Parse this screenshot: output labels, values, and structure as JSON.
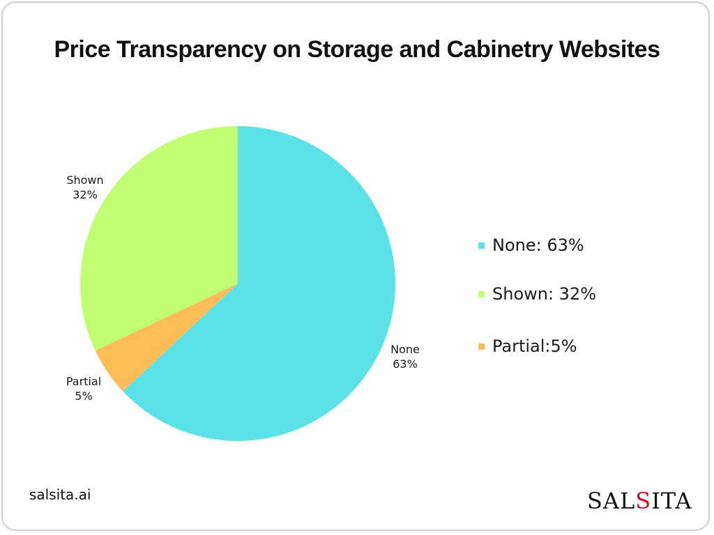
{
  "chart_data": {
    "type": "pie",
    "title": "Price Transparency on Storage and Cabinetry Websites",
    "slices": [
      {
        "key": "none",
        "name": "None",
        "value": 63,
        "pct_label": "63%",
        "color": "#5ce1e6",
        "legend": "None: 63%"
      },
      {
        "key": "partial",
        "name": "Partial",
        "value": 5,
        "pct_label": "5%",
        "color": "#ffbd59",
        "legend": "Partial:5%"
      },
      {
        "key": "shown",
        "name": "Shown",
        "value": 32,
        "pct_label": "32%",
        "color": "#c1ff72",
        "legend": "Shown: 32%"
      }
    ],
    "legend_order": [
      "none",
      "shown",
      "partial"
    ]
  },
  "footer": {
    "website": "salsita.ai",
    "logo_parts": [
      "SAL",
      "S",
      "ITA"
    ]
  }
}
